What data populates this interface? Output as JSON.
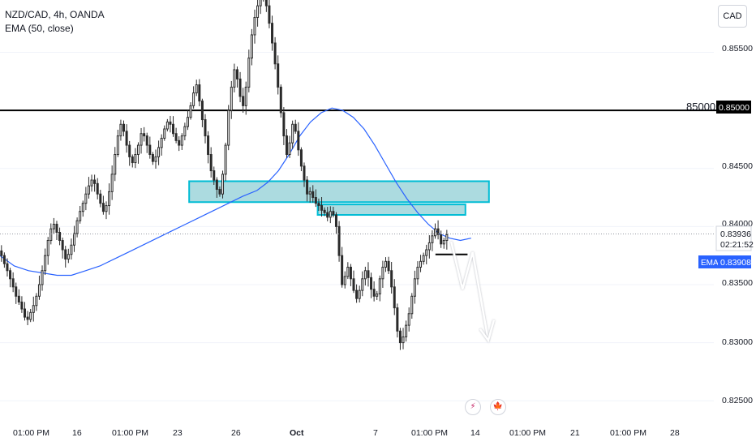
{
  "legend": {
    "symbol": "NZD/CAD, 4h, OANDA",
    "indicator": "EMA (50, close)"
  },
  "currency_button": "CAD",
  "price_axis": {
    "ticks": [
      "0.85500",
      "0.85000",
      "0.84500",
      "0.84000",
      "0.83500",
      "0.83000",
      "0.82500"
    ],
    "hline_label": "85000",
    "hline_value_label": "0.85000",
    "current_price": "0.83936",
    "countdown": "02:21:52",
    "ema_tag": "EMA",
    "ema_value": "0.83908"
  },
  "time_axis": {
    "ticks": [
      "01:00 PM",
      "16",
      "01:00 PM",
      "23",
      "26",
      "Oct",
      "7",
      "01:00 PM",
      "14",
      "01:00 PM",
      "21",
      "01:00 PM",
      "28"
    ]
  },
  "events": [
    {
      "icon": "lightning-icon",
      "glyph": "⚡"
    },
    {
      "icon": "canada-flag-icon",
      "glyph": "🍁"
    }
  ],
  "colors": {
    "up": "#2b2b2b",
    "down": "#2b2b2b",
    "ema": "#2962ff",
    "zone_fill": "#7fc8d0",
    "zone_border": "#00bcd4",
    "hline": "#000000",
    "arrow": "#ffffff"
  },
  "chart_data": {
    "type": "candlestick",
    "title": "NZD/CAD, 4h, OANDA",
    "indicator": "EMA (50, close)",
    "ylim": [
      0.8232,
      0.8595
    ],
    "horizontal_line": 0.85,
    "zones": [
      {
        "from_x": 0.265,
        "to_x": 0.685,
        "low": 0.8421,
        "high": 0.8439
      },
      {
        "from_x": 0.445,
        "to_x": 0.652,
        "low": 0.841,
        "high": 0.8419
      }
    ],
    "resistance_tick": {
      "from_x": 0.61,
      "to_x": 0.655,
      "price": 0.8376
    },
    "projection": [
      {
        "x": 0.632,
        "price": 0.8387
      },
      {
        "x": 0.648,
        "price": 0.8346
      },
      {
        "x": 0.662,
        "price": 0.8378
      },
      {
        "x": 0.684,
        "price": 0.8302
      }
    ],
    "closes": [
      0.8375,
      0.8368,
      0.8362,
      0.8355,
      0.8348,
      0.834,
      0.8335,
      0.8329,
      0.8322,
      0.832,
      0.8326,
      0.8332,
      0.834,
      0.835,
      0.8362,
      0.8375,
      0.8388,
      0.8398,
      0.8402,
      0.8395,
      0.8388,
      0.838,
      0.8372,
      0.8376,
      0.8384,
      0.8394,
      0.8405,
      0.8413,
      0.842,
      0.8428,
      0.8435,
      0.844,
      0.8437,
      0.8428,
      0.842,
      0.8413,
      0.8418,
      0.843,
      0.8445,
      0.8462,
      0.8478,
      0.8488,
      0.8482,
      0.847,
      0.846,
      0.8455,
      0.8462,
      0.847,
      0.848,
      0.8478,
      0.847,
      0.8462,
      0.8456,
      0.846,
      0.8468,
      0.8476,
      0.8484,
      0.849,
      0.8488,
      0.848,
      0.8474,
      0.847,
      0.8478,
      0.8486,
      0.8494,
      0.8504,
      0.8515,
      0.8522,
      0.8508,
      0.8492,
      0.8478,
      0.8462,
      0.8448,
      0.844,
      0.8432,
      0.8428,
      0.8445,
      0.847,
      0.85,
      0.852,
      0.8535,
      0.8527,
      0.8512,
      0.8504,
      0.852,
      0.8545,
      0.8565,
      0.858,
      0.859,
      0.8596,
      0.8596,
      0.859,
      0.8575,
      0.8558,
      0.854,
      0.852,
      0.8498,
      0.8478,
      0.8462,
      0.8472,
      0.8488,
      0.8482,
      0.8466,
      0.8452,
      0.844,
      0.8428,
      0.843,
      0.8425,
      0.842,
      0.8418,
      0.8414,
      0.8412,
      0.8408,
      0.8413,
      0.841,
      0.84,
      0.8375,
      0.835,
      0.8357,
      0.8365,
      0.8355,
      0.8345,
      0.8338,
      0.8345,
      0.8355,
      0.8362,
      0.8356,
      0.8346,
      0.834,
      0.8342,
      0.8355,
      0.8365,
      0.837,
      0.8362,
      0.8348,
      0.833,
      0.831,
      0.83,
      0.8305,
      0.8315,
      0.8325,
      0.834,
      0.8355,
      0.8365,
      0.837,
      0.8375,
      0.838,
      0.8386,
      0.8392,
      0.8398,
      0.8393,
      0.8385,
      0.8388,
      0.8393
    ],
    "ema": [
      0.8375,
      0.8366,
      0.8362,
      0.836,
      0.8358,
      0.8358,
      0.8362,
      0.8366,
      0.8372,
      0.8378,
      0.8384,
      0.839,
      0.8396,
      0.8402,
      0.8408,
      0.8414,
      0.842,
      0.8426,
      0.8431,
      0.8438,
      0.8448,
      0.8462,
      0.8478,
      0.849,
      0.8498,
      0.8502,
      0.85,
      0.8494,
      0.8484,
      0.847,
      0.8454,
      0.8438,
      0.8424,
      0.8412,
      0.8402,
      0.8394,
      0.839,
      0.8388,
      0.839
    ],
    "ema_x": [
      0.0,
      0.02,
      0.04,
      0.06,
      0.08,
      0.1,
      0.12,
      0.14,
      0.16,
      0.18,
      0.2,
      0.22,
      0.24,
      0.26,
      0.28,
      0.3,
      0.32,
      0.34,
      0.36,
      0.375,
      0.39,
      0.405,
      0.42,
      0.435,
      0.45,
      0.465,
      0.48,
      0.495,
      0.51,
      0.525,
      0.54,
      0.555,
      0.57,
      0.585,
      0.6,
      0.615,
      0.63,
      0.645,
      0.66
    ]
  }
}
